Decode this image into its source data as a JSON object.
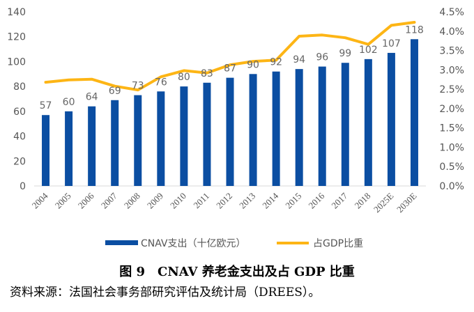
{
  "chart_data": {
    "type": "bar+line",
    "categories": [
      "2004",
      "2005",
      "2006",
      "2007",
      "2008",
      "2009",
      "2010",
      "2011",
      "2012",
      "2013",
      "2014",
      "2015",
      "2016",
      "2017",
      "2018",
      "2025E",
      "2030E"
    ],
    "series": [
      {
        "name": "CNAV支出（十亿欧元）",
        "type": "bar",
        "axis": "left",
        "values": [
          57,
          60,
          64,
          69,
          73,
          76,
          80,
          83,
          87,
          90,
          92,
          94,
          96,
          99,
          102,
          107,
          118
        ],
        "color": "#0b4ea2"
      },
      {
        "name": "占GDP比重",
        "type": "line",
        "axis": "right",
        "values": [
          2.68,
          2.74,
          2.76,
          2.58,
          2.48,
          2.82,
          2.98,
          2.92,
          3.13,
          3.22,
          3.25,
          3.87,
          3.9,
          3.83,
          3.66,
          4.15,
          4.23
        ],
        "color": "#fdb515"
      }
    ],
    "bar_labels": [
      "57",
      "60",
      "64",
      "69",
      "73",
      "76",
      "80",
      "83",
      "87",
      "90",
      "92",
      "94",
      "96",
      "99",
      "102",
      "107",
      "118"
    ],
    "y_left": {
      "min": 0,
      "max": 140,
      "ticks": [
        "0",
        "20",
        "40",
        "60",
        "80",
        "100",
        "120",
        "140"
      ]
    },
    "y_right": {
      "min": 0,
      "max": 4.5,
      "ticks": [
        "0.0%",
        "0.5%",
        "1.0%",
        "1.5%",
        "2.0%",
        "2.5%",
        "3.0%",
        "3.5%",
        "4.0%",
        "4.5%"
      ]
    },
    "legend": [
      {
        "label": "CNAV支出（十亿欧元）",
        "kind": "bar"
      },
      {
        "label": "占GDP比重",
        "kind": "line"
      }
    ],
    "legend_position": "bottom"
  },
  "caption": "图 9　CNAV 养老金支出及占 GDP 比重",
  "source": "资料来源：法国社会事务部研究评估及统计局（DREES）。"
}
